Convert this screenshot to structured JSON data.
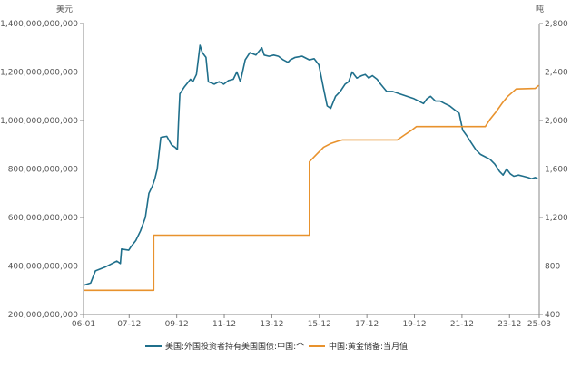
{
  "chart_data": {
    "type": "line",
    "y_left_unit": "美元",
    "y_right_unit": "吨",
    "y_left_ticks": [
      "200,000,000,000",
      "400,000,000,000",
      "600,000,000,000",
      "800,000,000,000",
      "1,000,000,000,000",
      "1,200,000,000,000",
      "1,400,000,000,000"
    ],
    "y_left_values": [
      200000000000,
      400000000000,
      600000000000,
      800000000000,
      1000000000000,
      1200000000000,
      1400000000000
    ],
    "y_left_lim": [
      200000000000,
      1400000000000
    ],
    "y_right_ticks": [
      "400",
      "800",
      "1,200",
      "1,600",
      "2,000",
      "2,400",
      "2,800"
    ],
    "y_right_values": [
      400,
      800,
      1200,
      1600,
      2000,
      2400,
      2800
    ],
    "y_right_lim": [
      400,
      2800
    ],
    "x_ticks": [
      "06-01",
      "07-12",
      "09-12",
      "11-12",
      "13-12",
      "15-12",
      "17-12",
      "19-12",
      "21-12",
      "23-12",
      "25-03"
    ],
    "x_tick_years": [
      2006.0,
      2007.92,
      2009.92,
      2011.92,
      2013.92,
      2015.92,
      2017.92,
      2019.92,
      2021.92,
      2023.92,
      2025.17
    ],
    "x_lim": [
      2006.0,
      2025.17
    ],
    "legend_position": "bottom",
    "series": [
      {
        "name": "美国:外国投资者持有美国国债:中国:个",
        "axis": "left",
        "color": "#1f6f8b",
        "points": [
          [
            2006.0,
            320000000000
          ],
          [
            2006.3,
            330000000000
          ],
          [
            2006.5,
            380000000000
          ],
          [
            2006.9,
            395000000000
          ],
          [
            2007.1,
            405000000000
          ],
          [
            2007.4,
            420000000000
          ],
          [
            2007.55,
            410000000000
          ],
          [
            2007.6,
            470000000000
          ],
          [
            2007.9,
            465000000000
          ],
          [
            2008.0,
            480000000000
          ],
          [
            2008.2,
            505000000000
          ],
          [
            2008.4,
            545000000000
          ],
          [
            2008.6,
            600000000000
          ],
          [
            2008.75,
            700000000000
          ],
          [
            2008.9,
            730000000000
          ],
          [
            2009.0,
            760000000000
          ],
          [
            2009.1,
            800000000000
          ],
          [
            2009.25,
            930000000000
          ],
          [
            2009.5,
            935000000000
          ],
          [
            2009.7,
            900000000000
          ],
          [
            2009.85,
            890000000000
          ],
          [
            2009.95,
            880000000000
          ],
          [
            2010.0,
            1000000000000
          ],
          [
            2010.05,
            1110000000000
          ],
          [
            2010.25,
            1140000000000
          ],
          [
            2010.5,
            1170000000000
          ],
          [
            2010.6,
            1160000000000
          ],
          [
            2010.75,
            1190000000000
          ],
          [
            2010.9,
            1310000000000
          ],
          [
            2011.0,
            1280000000000
          ],
          [
            2011.15,
            1260000000000
          ],
          [
            2011.25,
            1160000000000
          ],
          [
            2011.5,
            1150000000000
          ],
          [
            2011.7,
            1160000000000
          ],
          [
            2011.9,
            1150000000000
          ],
          [
            2012.1,
            1165000000000
          ],
          [
            2012.3,
            1170000000000
          ],
          [
            2012.45,
            1200000000000
          ],
          [
            2012.6,
            1160000000000
          ],
          [
            2012.8,
            1250000000000
          ],
          [
            2013.0,
            1280000000000
          ],
          [
            2013.25,
            1270000000000
          ],
          [
            2013.5,
            1300000000000
          ],
          [
            2013.6,
            1270000000000
          ],
          [
            2013.8,
            1265000000000
          ],
          [
            2014.0,
            1270000000000
          ],
          [
            2014.2,
            1265000000000
          ],
          [
            2014.4,
            1250000000000
          ],
          [
            2014.6,
            1240000000000
          ],
          [
            2014.7,
            1250000000000
          ],
          [
            2014.9,
            1260000000000
          ],
          [
            2015.2,
            1265000000000
          ],
          [
            2015.5,
            1250000000000
          ],
          [
            2015.7,
            1255000000000
          ],
          [
            2015.9,
            1230000000000
          ],
          [
            2016.1,
            1130000000000
          ],
          [
            2016.25,
            1060000000000
          ],
          [
            2016.4,
            1050000000000
          ],
          [
            2016.6,
            1100000000000
          ],
          [
            2016.8,
            1120000000000
          ],
          [
            2017.0,
            1150000000000
          ],
          [
            2017.15,
            1160000000000
          ],
          [
            2017.3,
            1200000000000
          ],
          [
            2017.5,
            1175000000000
          ],
          [
            2017.7,
            1185000000000
          ],
          [
            2017.85,
            1190000000000
          ],
          [
            2018.0,
            1175000000000
          ],
          [
            2018.15,
            1185000000000
          ],
          [
            2018.35,
            1170000000000
          ],
          [
            2018.5,
            1150000000000
          ],
          [
            2018.75,
            1120000000000
          ],
          [
            2019.0,
            1120000000000
          ],
          [
            2019.3,
            1110000000000
          ],
          [
            2019.6,
            1100000000000
          ],
          [
            2019.9,
            1090000000000
          ],
          [
            2020.1,
            1080000000000
          ],
          [
            2020.3,
            1070000000000
          ],
          [
            2020.45,
            1090000000000
          ],
          [
            2020.6,
            1100000000000
          ],
          [
            2020.8,
            1080000000000
          ],
          [
            2021.0,
            1080000000000
          ],
          [
            2021.2,
            1070000000000
          ],
          [
            2021.4,
            1060000000000
          ],
          [
            2021.6,
            1045000000000
          ],
          [
            2021.8,
            1030000000000
          ],
          [
            2021.95,
            960000000000
          ],
          [
            2022.1,
            940000000000
          ],
          [
            2022.3,
            910000000000
          ],
          [
            2022.5,
            880000000000
          ],
          [
            2022.7,
            860000000000
          ],
          [
            2022.9,
            850000000000
          ],
          [
            2023.1,
            840000000000
          ],
          [
            2023.3,
            820000000000
          ],
          [
            2023.5,
            790000000000
          ],
          [
            2023.65,
            775000000000
          ],
          [
            2023.8,
            800000000000
          ],
          [
            2023.95,
            780000000000
          ],
          [
            2024.1,
            770000000000
          ],
          [
            2024.3,
            775000000000
          ],
          [
            2024.5,
            770000000000
          ],
          [
            2024.7,
            765000000000
          ],
          [
            2024.85,
            760000000000
          ],
          [
            2025.0,
            765000000000
          ],
          [
            2025.1,
            760000000000
          ]
        ]
      },
      {
        "name": "中国:黄金储备:当月值",
        "axis": "right",
        "color": "#e8922d",
        "points": [
          [
            2006.0,
            600
          ],
          [
            2008.95,
            600
          ],
          [
            2008.95,
            1054
          ],
          [
            2015.5,
            1054
          ],
          [
            2015.5,
            1660
          ],
          [
            2015.8,
            1720
          ],
          [
            2016.1,
            1780
          ],
          [
            2016.4,
            1810
          ],
          [
            2016.7,
            1830
          ],
          [
            2016.9,
            1840
          ],
          [
            2019.2,
            1840
          ],
          [
            2019.5,
            1880
          ],
          [
            2019.8,
            1920
          ],
          [
            2020.0,
            1950
          ],
          [
            2022.9,
            1950
          ],
          [
            2023.1,
            2010
          ],
          [
            2023.35,
            2070
          ],
          [
            2023.6,
            2140
          ],
          [
            2023.85,
            2200
          ],
          [
            2024.2,
            2260
          ],
          [
            2025.0,
            2265
          ],
          [
            2025.15,
            2290
          ]
        ]
      }
    ]
  }
}
